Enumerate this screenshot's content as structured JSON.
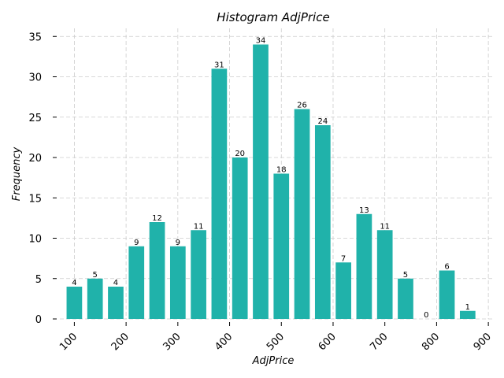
{
  "chart_data": {
    "type": "bar",
    "title": "Histogram AdjPrice",
    "xlabel": "AdjPrice",
    "ylabel": "Frequency",
    "bar_color": "#20b2aa",
    "grid": true,
    "xlim": [
      72,
      912
    ],
    "ylim": [
      0,
      36
    ],
    "x_ticks": [
      100,
      200,
      300,
      400,
      500,
      600,
      700,
      800,
      900
    ],
    "y_ticks": [
      0,
      5,
      10,
      15,
      20,
      25,
      30,
      35
    ],
    "bin_width": 40,
    "bins": [
      100,
      140,
      180,
      220,
      260,
      300,
      340,
      380,
      420,
      460,
      500,
      540,
      580,
      620,
      660,
      700,
      740,
      780,
      820,
      860
    ],
    "values": [
      4,
      5,
      4,
      9,
      12,
      9,
      11,
      31,
      20,
      34,
      18,
      26,
      24,
      7,
      13,
      11,
      5,
      0,
      6,
      1
    ]
  }
}
